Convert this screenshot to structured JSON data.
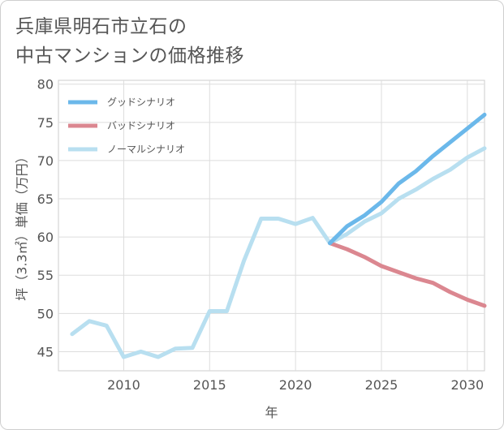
{
  "title_lines": [
    "兵庫県明石市立石の",
    "中古マンションの価格推移"
  ],
  "chart_data": {
    "type": "line",
    "xlabel": "年",
    "ylabel": "坪（3.3㎡）単価（万円）",
    "xlim": [
      2006.2,
      2031
    ],
    "ylim": [
      42.5,
      80.5
    ],
    "x_ticks": [
      2010,
      2015,
      2020,
      2025,
      2030
    ],
    "y_ticks": [
      45,
      50,
      55,
      60,
      65,
      70,
      75,
      80
    ],
    "grid": true,
    "legend_position": "top-left",
    "series": [
      {
        "name": "グッドシナリオ",
        "color": "#6bb8ea",
        "x": [
          2022,
          2023,
          2024,
          2025,
          2026,
          2027,
          2028,
          2029,
          2030,
          2031
        ],
        "y": [
          59.2,
          61.4,
          62.8,
          64.6,
          67.0,
          68.6,
          70.6,
          72.4,
          74.2,
          76.0
        ]
      },
      {
        "name": "バッドシナリオ",
        "color": "#db8790",
        "x": [
          2022,
          2023,
          2024,
          2025,
          2026,
          2027,
          2028,
          2029,
          2030,
          2031
        ],
        "y": [
          59.2,
          58.4,
          57.4,
          56.2,
          55.4,
          54.6,
          54.0,
          52.8,
          51.8,
          51.0
        ]
      },
      {
        "name": "ノーマルシナリオ",
        "color": "#b8dff0",
        "x": [
          2007,
          2008,
          2009,
          2010,
          2011,
          2012,
          2013,
          2014,
          2015,
          2016,
          2017,
          2018,
          2019,
          2020,
          2021,
          2022,
          2023,
          2024,
          2025,
          2026,
          2027,
          2028,
          2029,
          2030,
          2031
        ],
        "y": [
          47.3,
          49.0,
          48.4,
          44.3,
          45.0,
          44.3,
          45.4,
          45.5,
          50.3,
          50.3,
          56.9,
          62.4,
          62.4,
          61.7,
          62.5,
          59.2,
          60.4,
          62.0,
          63.1,
          65.0,
          66.2,
          67.6,
          68.8,
          70.4,
          71.6
        ]
      }
    ]
  }
}
